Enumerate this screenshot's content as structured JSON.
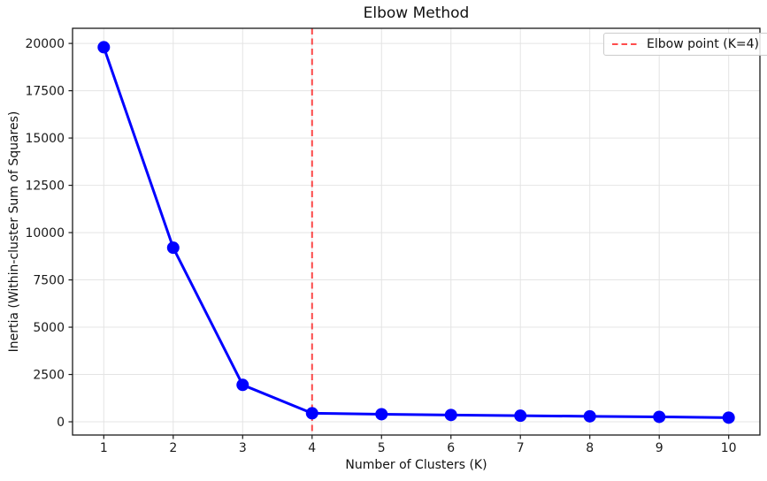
{
  "chart_data": {
    "type": "line",
    "title": "Elbow Method",
    "xlabel": "Number of Clusters (K)",
    "ylabel": "Inertia (Within-cluster Sum of Squares)",
    "x": [
      1,
      2,
      3,
      4,
      5,
      6,
      7,
      8,
      9,
      10
    ],
    "series": [
      {
        "name": "Inertia",
        "values": [
          19800,
          9200,
          1950,
          450,
          400,
          360,
          320,
          290,
          260,
          220
        ]
      }
    ],
    "xticks": [
      1,
      2,
      3,
      4,
      5,
      6,
      7,
      8,
      9,
      10
    ],
    "yticks": [
      0,
      2500,
      5000,
      7500,
      10000,
      12500,
      15000,
      17500,
      20000
    ],
    "xlim": [
      0.55,
      10.45
    ],
    "ylim": [
      -700,
      20800
    ],
    "grid": true,
    "elbow_point": {
      "k": 4
    },
    "legend": {
      "position": "upper-right",
      "entries": [
        {
          "label": "Elbow point (K=4)",
          "line_style": "dashed",
          "color": "#ff0000"
        }
      ]
    },
    "colors": {
      "line": "#0000ff",
      "marker": "#0000ff",
      "vline": "#ff0000",
      "vline_opacity": 0.7,
      "grid": "#e4e4e4",
      "spine": "#1a1a1a",
      "tick_text": "#1a1a1a"
    }
  }
}
